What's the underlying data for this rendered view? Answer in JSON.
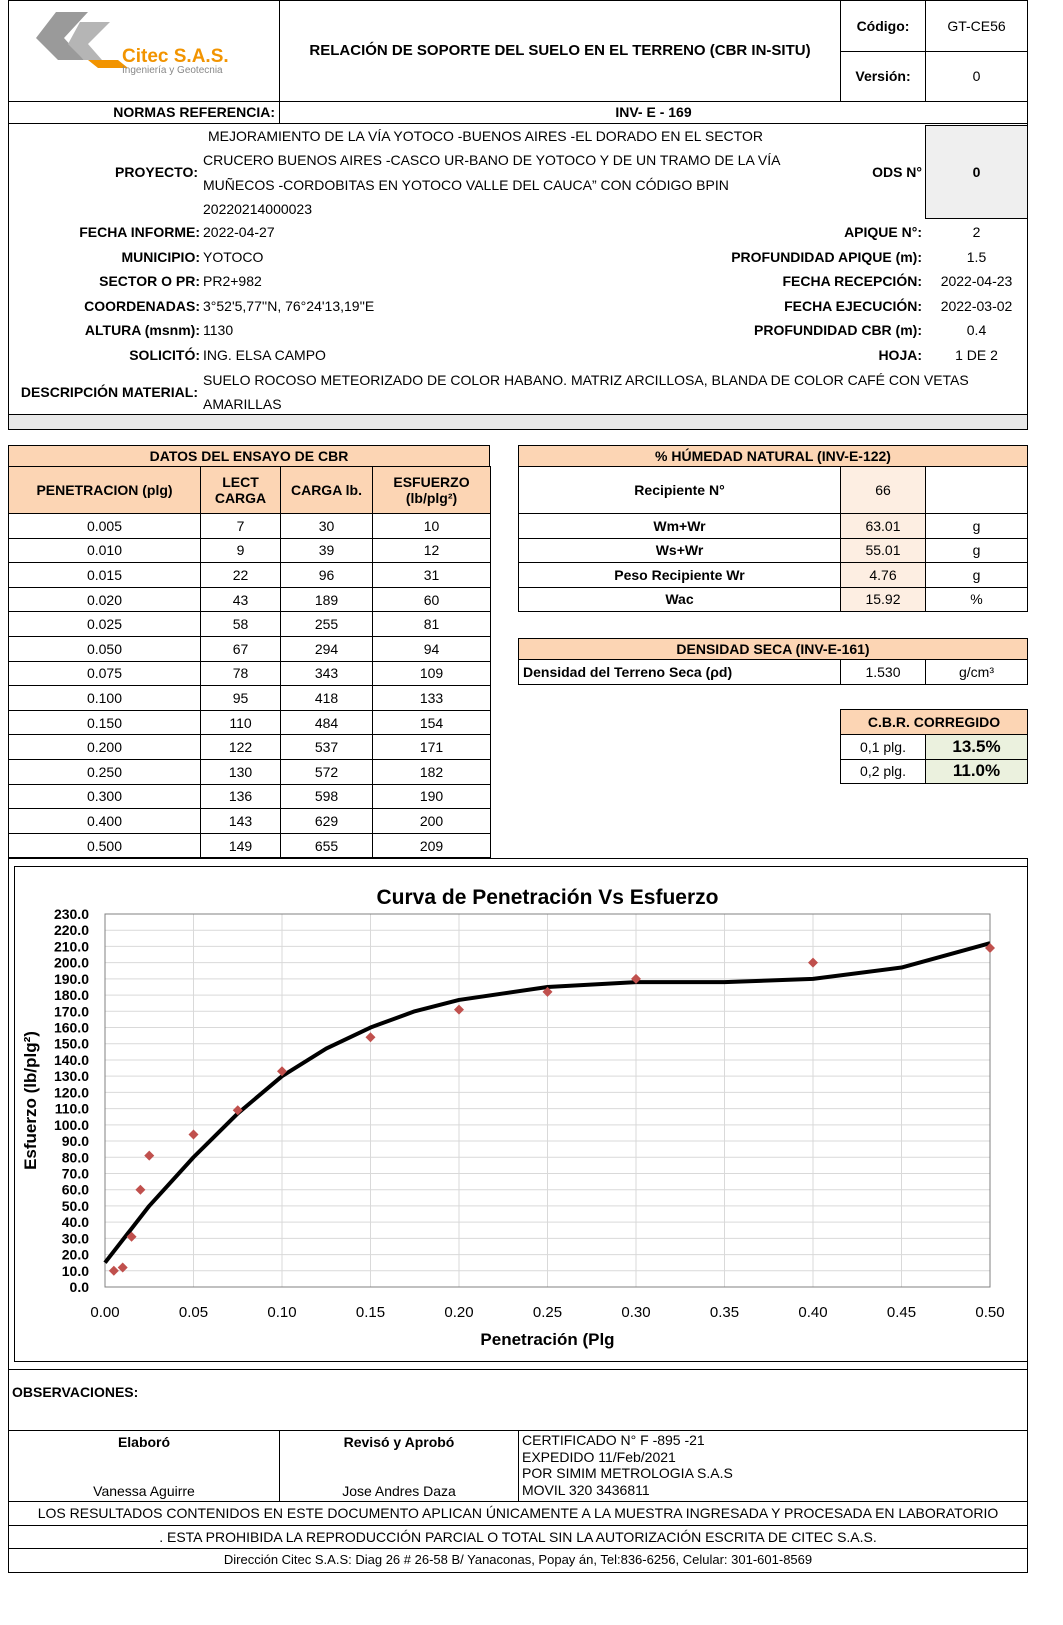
{
  "header": {
    "company": "Citec S.A.S.",
    "tagline": "Ingeniería y Geotecnia",
    "title": "RELACIÓN DE SOPORTE DEL SUELO EN EL TERRENO (CBR IN-SITU)",
    "code_label": "Código:",
    "code": "GT-CE56",
    "version_label": "Versión:",
    "version": "0"
  },
  "norms": {
    "label": "NORMAS REFERENCIA:",
    "value": "INV- E - 169"
  },
  "project": {
    "label": "PROYECTO:",
    "lines": [
      "MEJORAMIENTO DE LA VÍA YOTOCO -BUENOS AIRES -EL DORADO EN EL SECTOR",
      "CRUCERO BUENOS AIRES -CASCO UR-BANO DE YOTOCO Y DE UN TRAMO DE LA VÍA",
      "MUÑECOS -CORDOBITAS EN YOTOCO VALLE DEL CAUCA” CON CÓDIGO BPIN",
      "20220214000023"
    ],
    "ods_label": "ODS N°",
    "ods": "0"
  },
  "fields_left": [
    {
      "label": "FECHA INFORME:",
      "value": "2022-04-27"
    },
    {
      "label": "MUNICIPIO:",
      "value": "YOTOCO"
    },
    {
      "label": "SECTOR O PR:",
      "value": "PR2+982"
    },
    {
      "label": "COORDENADAS:",
      "value": "3°52'5,77''N,  76°24'13,19''E"
    },
    {
      "label": "ALTURA (msnm):",
      "value": "1130"
    },
    {
      "label": "SOLICITÓ:",
      "value": "ING. ELSA CAMPO"
    }
  ],
  "fields_right": [
    {
      "label": "APIQUE N°:",
      "value": "2"
    },
    {
      "label": "PROFUNDIDAD APIQUE (m):",
      "value": "1.5"
    },
    {
      "label": "FECHA RECEPCIÓN:",
      "value": "2022-04-23"
    },
    {
      "label": "FECHA EJECUCIÓN:",
      "value": "2022-03-02"
    },
    {
      "label": "PROFUNDIDAD CBR (m):",
      "value": "0.4"
    },
    {
      "label": "HOJA:",
      "value": "1 DE 2"
    }
  ],
  "material": {
    "label": "DESCRIPCIÓN MATERIAL:",
    "lines": [
      "SUELO ROCOSO METEORIZADO DE COLOR HABANO. MATRIZ ARCILLOSA, BLANDA DE COLOR CAFÉ CON VETAS",
      "AMARILLAS"
    ]
  },
  "cbr_table": {
    "title": "DATOS DEL ENSAYO DE CBR",
    "headers": [
      "PENETRACION (plg)",
      "LECT CARGA",
      "CARGA lb.",
      "ESFUERZO (lb/plg²)"
    ],
    "rows": [
      [
        "0.005",
        "7",
        "30",
        "10"
      ],
      [
        "0.010",
        "9",
        "39",
        "12"
      ],
      [
        "0.015",
        "22",
        "96",
        "31"
      ],
      [
        "0.020",
        "43",
        "189",
        "60"
      ],
      [
        "0.025",
        "58",
        "255",
        "81"
      ],
      [
        "0.050",
        "67",
        "294",
        "94"
      ],
      [
        "0.075",
        "78",
        "343",
        "109"
      ],
      [
        "0.100",
        "95",
        "418",
        "133"
      ],
      [
        "0.150",
        "110",
        "484",
        "154"
      ],
      [
        "0.200",
        "122",
        "537",
        "171"
      ],
      [
        "0.250",
        "130",
        "572",
        "182"
      ],
      [
        "0.300",
        "136",
        "598",
        "190"
      ],
      [
        "0.400",
        "143",
        "629",
        "200"
      ],
      [
        "0.500",
        "149",
        "655",
        "209"
      ]
    ]
  },
  "moisture": {
    "title": "% HÚMEDAD NATURAL (INV-E-122)",
    "rows": [
      {
        "label": "Recipiente N°",
        "value": "66"
      },
      {
        "label": "Wm+Wr",
        "value": "63.01",
        "unit": "g"
      },
      {
        "label": "Ws+Wr",
        "value": "55.01",
        "unit": "g"
      },
      {
        "label": "Peso Recipiente Wr",
        "value": "4.76",
        "unit": "g"
      },
      {
        "label": "Wac",
        "value": "15.92",
        "unit": "%"
      }
    ]
  },
  "density": {
    "title": "DENSIDAD SECA (INV-E-161)",
    "label": "Densidad del Terreno Seca (ρd)",
    "value": "1.530",
    "unit": "g/cm³"
  },
  "cbr_corrected": {
    "title": "C.B.R. CORREGIDO",
    "rows": [
      {
        "label": "0,1  plg.",
        "value": "13.5%"
      },
      {
        "label": "0,2 plg.",
        "value": "11.0%"
      }
    ]
  },
  "chart_data": {
    "type": "scatter",
    "title": "Curva de Penetración Vs Esfuerzo",
    "x_label": "Penetración (Plg",
    "y_label": "Esfuerzo  (lb/plg²)",
    "series": [
      {
        "type": "scatter",
        "color": "#c0504d",
        "x": [
          0.005,
          0.01,
          0.015,
          0.02,
          0.025,
          0.05,
          0.075,
          0.1,
          0.15,
          0.2,
          0.25,
          0.3,
          0.4,
          0.5
        ],
        "values": [
          10,
          12,
          31,
          60,
          81,
          94,
          109,
          133,
          154,
          171,
          182,
          190,
          200,
          209
        ]
      },
      {
        "type": "line",
        "color": "#000000",
        "x": [
          0,
          0.025,
          0.05,
          0.075,
          0.1,
          0.125,
          0.15,
          0.175,
          0.2,
          0.25,
          0.3,
          0.35,
          0.4,
          0.45,
          0.5
        ],
        "values": [
          15,
          50,
          80,
          107,
          130,
          147,
          160,
          170,
          177,
          185,
          188,
          188,
          190,
          197,
          212
        ]
      }
    ],
    "xlim": [
      0,
      0.5
    ],
    "xticks": [
      {
        "value": 0,
        "label": "0.00"
      },
      {
        "value": 0.05,
        "label": "0.05"
      },
      {
        "value": 0.1,
        "label": "0.10"
      },
      {
        "value": 0.15,
        "label": "0.15"
      },
      {
        "value": 0.2,
        "label": "0.20"
      },
      {
        "value": 0.25,
        "label": "0.25"
      },
      {
        "value": 0.3,
        "label": "0.30"
      },
      {
        "value": 0.35,
        "label": "0.35"
      },
      {
        "value": 0.4,
        "label": "0.40"
      },
      {
        "value": 0.45,
        "label": "0.45"
      },
      {
        "value": 0.5,
        "label": "0.50"
      }
    ],
    "ylim": [
      0,
      230
    ],
    "yticks": [
      {
        "value": 0,
        "label": "0.0"
      },
      {
        "value": 10,
        "label": "10.0"
      },
      {
        "value": 20,
        "label": "20.0"
      },
      {
        "value": 30,
        "label": "30.0"
      },
      {
        "value": 40,
        "label": "40.0"
      },
      {
        "value": 50,
        "label": "50.0"
      },
      {
        "value": 60,
        "label": "60.0"
      },
      {
        "value": 70,
        "label": "70.0"
      },
      {
        "value": 80,
        "label": "80.0"
      },
      {
        "value": 90,
        "label": "90.0"
      },
      {
        "value": 100,
        "label": "100.0"
      },
      {
        "value": 110,
        "label": "110.0"
      },
      {
        "value": 120,
        "label": "120.0"
      },
      {
        "value": 130,
        "label": "130.0"
      },
      {
        "value": 140,
        "label": "140.0"
      },
      {
        "value": 150,
        "label": "150.0"
      },
      {
        "value": 160,
        "label": "160.0"
      },
      {
        "value": 170,
        "label": "170.0"
      },
      {
        "value": 180,
        "label": "180.0"
      },
      {
        "value": 190,
        "label": "190.0"
      },
      {
        "value": 200,
        "label": "200.0"
      },
      {
        "value": 210,
        "label": "210.0"
      },
      {
        "value": 220,
        "label": "220.0"
      },
      {
        "value": 230,
        "label": "230.0"
      }
    ],
    "grid": true
  },
  "observations": {
    "label": "OBSERVACIONES:"
  },
  "signatures": {
    "made_label": "Elaboró",
    "made_by": "Vanessa Aguirre",
    "approved_label": "Revisó y Aprobó",
    "approved_by": "Jose Andres Daza",
    "certificate": [
      "CERTIFICADO N°  F -895 -21",
      "EXPEDIDO 11/Feb/2021",
      "POR SIMIM METROLOGIA S.A.S",
      "MOVIL 320 3436811"
    ]
  },
  "footer": [
    "LOS RESULTADOS CONTENIDOS EN ESTE DOCUMENTO APLICAN ÚNICAMENTE A LA MUESTRA INGRESADA Y PROCESADA EN LABORATORIO",
    ". ESTA PROHIBIDA LA REPRODUCCIÓN PARCIAL O TOTAL SIN LA AUTORIZACIÓN ESCRITA DE CITEC S.A.S.",
    "Dirección Citec S.A.S: Diag 26 # 26-58 B/ Yanaconas, Popay án, Tel:836-6256, Celular: 301-601-8569"
  ]
}
